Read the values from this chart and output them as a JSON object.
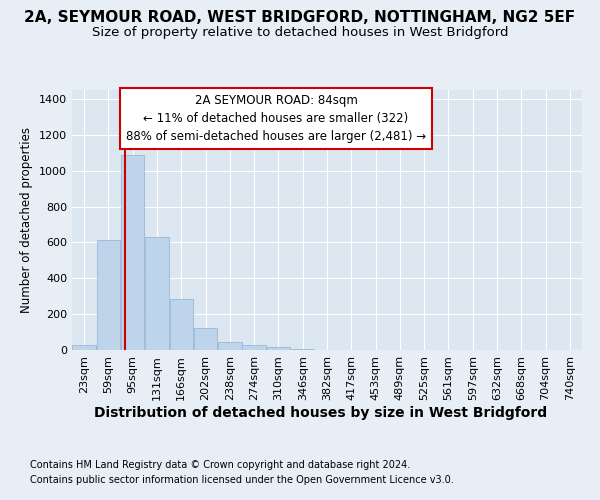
{
  "title1": "2A, SEYMOUR ROAD, WEST BRIDGFORD, NOTTINGHAM, NG2 5EF",
  "title2": "Size of property relative to detached houses in West Bridgford",
  "xlabel": "Distribution of detached houses by size in West Bridgford",
  "ylabel": "Number of detached properties",
  "footnote1": "Contains HM Land Registry data © Crown copyright and database right 2024.",
  "footnote2": "Contains public sector information licensed under the Open Government Licence v3.0.",
  "bar_labels": [
    "23sqm",
    "59sqm",
    "95sqm",
    "131sqm",
    "166sqm",
    "202sqm",
    "238sqm",
    "274sqm",
    "310sqm",
    "346sqm",
    "382sqm",
    "417sqm",
    "453sqm",
    "489sqm",
    "525sqm",
    "561sqm",
    "597sqm",
    "632sqm",
    "668sqm",
    "704sqm",
    "740sqm"
  ],
  "bar_values": [
    27,
    615,
    1085,
    632,
    285,
    120,
    45,
    27,
    18,
    5,
    0,
    0,
    0,
    0,
    0,
    0,
    0,
    0,
    0,
    0,
    0
  ],
  "bar_color": "#bdd4ea",
  "bar_edgecolor": "#9ab8d8",
  "ylim": [
    0,
    1450
  ],
  "yticks": [
    0,
    200,
    400,
    600,
    800,
    1000,
    1200,
    1400
  ],
  "vline_color": "#cc0000",
  "vline_x": 1.69,
  "annotation_text": "2A SEYMOUR ROAD: 84sqm\n← 11% of detached houses are smaller (322)\n88% of semi-detached houses are larger (2,481) →",
  "annotation_box_color": "#ffffff",
  "annotation_border_color": "#cc0000",
  "bg_color": "#e8eef5",
  "plot_bg_color": "#dce6f0",
  "grid_color": "#ffffff",
  "title1_fontsize": 11,
  "title2_fontsize": 9.5,
  "xlabel_fontsize": 10,
  "ylabel_fontsize": 8.5,
  "tick_fontsize": 8,
  "annotation_fontsize": 8.5,
  "footnote_fontsize": 7
}
